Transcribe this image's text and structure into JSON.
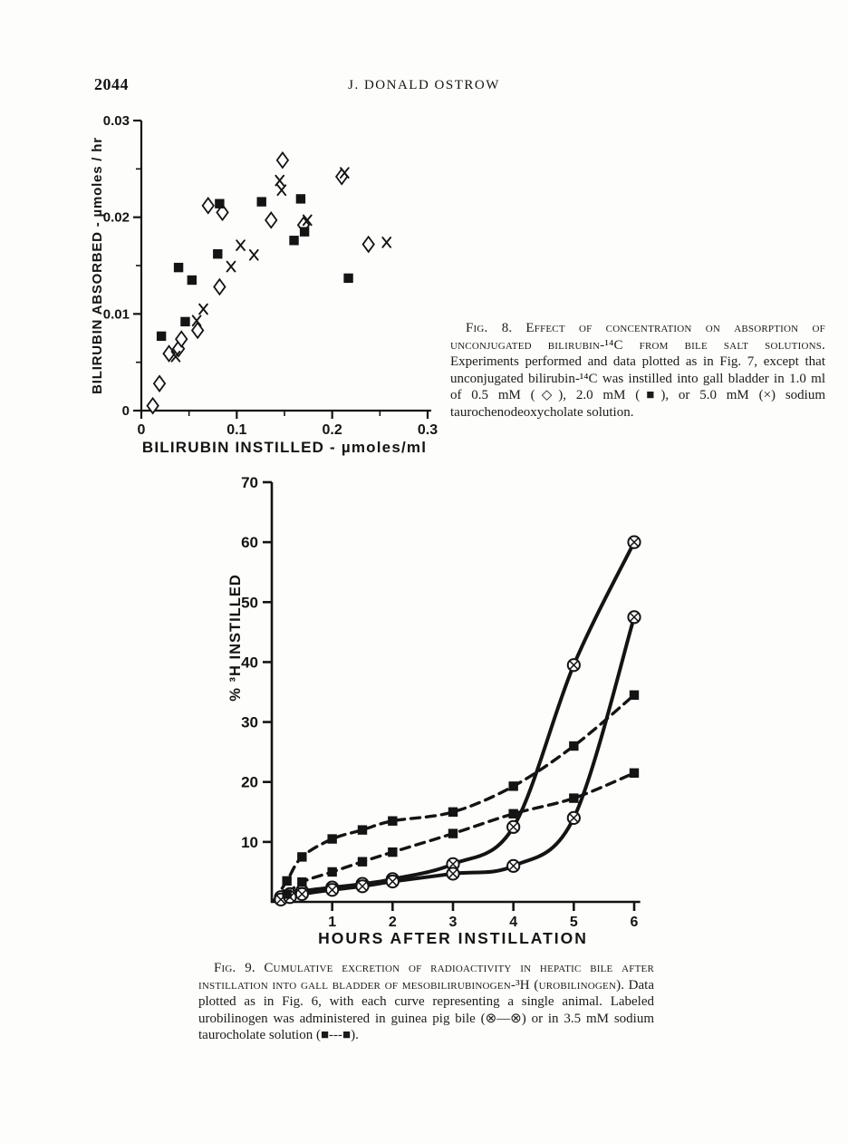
{
  "page": {
    "number": "2044",
    "running_head": "J. DONALD OSTROW"
  },
  "figure8": {
    "caption": {
      "label": "Fig. 8.",
      "title": "Effect of concentration on absorption of unconjugated bilirubin-¹⁴C from bile salt solutions.",
      "body": "Experiments performed and data plotted as in Fig. 7, except that unconjugated bilirubin-¹⁴C was instilled into gall bladder in 1.0 ml of 0.5 mM (◇), 2.0 mM (■), or 5.0 mM (×) sodium taurochenodeoxycholate solution."
    }
  },
  "figure9": {
    "caption": {
      "label": "Fig. 9.",
      "title": "Cumulative excretion of radioactivity in hepatic bile after instillation into gall bladder of mesobilirubinogen-³H (urobilinogen).",
      "body": "Data plotted as in Fig. 6, with each curve representing a single animal. Labeled urobilinogen was administered in guinea pig bile (⊗—⊗) or in 3.5 mM sodium taurocholate solution (■---■)."
    }
  },
  "chart_data": [
    {
      "id": "fig8",
      "type": "scatter",
      "title": "",
      "xlabel": "BILIRUBIN INSTILLED - µmoles/ml",
      "ylabel": "BILIRUBIN ABSORBED - µmoles / hr",
      "xlim": [
        0,
        0.3
      ],
      "ylim": [
        0,
        0.03
      ],
      "xticks": [
        0,
        0.1,
        0.2,
        0.3
      ],
      "xtick_labels": [
        "0",
        "0.1",
        "0.2",
        "0.3"
      ],
      "xminor": [
        0.05,
        0.15,
        0.25
      ],
      "yticks": [
        0,
        0.01,
        0.02,
        0.03
      ],
      "ytick_labels": [
        "0",
        "0.01",
        "0.02",
        "0.03"
      ],
      "yminor": [
        0.005,
        0.015,
        0.025
      ],
      "grid": false,
      "legend": "in caption",
      "series": [
        {
          "name": "0.5 mM sodium taurochenodeoxycholate",
          "marker": "diamond",
          "points": [
            [
              0.012,
              0.0005
            ],
            [
              0.019,
              0.0028
            ],
            [
              0.029,
              0.0059
            ],
            [
              0.039,
              0.0064
            ],
            [
              0.042,
              0.0074
            ],
            [
              0.059,
              0.0083
            ],
            [
              0.07,
              0.0212
            ],
            [
              0.082,
              0.0128
            ],
            [
              0.085,
              0.0205
            ],
            [
              0.136,
              0.0197
            ],
            [
              0.148,
              0.0259
            ],
            [
              0.17,
              0.0192
            ],
            [
              0.21,
              0.0242
            ],
            [
              0.238,
              0.0172
            ]
          ]
        },
        {
          "name": "2.0 mM sodium taurochenodeoxycholate",
          "marker": "square",
          "points": [
            [
              0.021,
              0.0077
            ],
            [
              0.039,
              0.0148
            ],
            [
              0.046,
              0.0092
            ],
            [
              0.053,
              0.0135
            ],
            [
              0.08,
              0.0162
            ],
            [
              0.082,
              0.0214
            ],
            [
              0.126,
              0.0216
            ],
            [
              0.16,
              0.0176
            ],
            [
              0.167,
              0.0219
            ],
            [
              0.171,
              0.0185
            ],
            [
              0.217,
              0.0137
            ]
          ]
        },
        {
          "name": "5.0 mM sodium taurochenodeoxycholate",
          "marker": "x",
          "points": [
            [
              0.036,
              0.0056
            ],
            [
              0.058,
              0.0093
            ],
            [
              0.065,
              0.0105
            ],
            [
              0.094,
              0.0149
            ],
            [
              0.104,
              0.0171
            ],
            [
              0.118,
              0.0161
            ],
            [
              0.145,
              0.0238
            ],
            [
              0.147,
              0.0228
            ],
            [
              0.174,
              0.0197
            ],
            [
              0.213,
              0.0246
            ],
            [
              0.257,
              0.0174
            ]
          ]
        }
      ]
    },
    {
      "id": "fig9",
      "type": "line",
      "title": "",
      "xlabel": "HOURS AFTER INSTILLATION",
      "ylabel": "% ³H INSTILLED",
      "xlim": [
        0,
        6.1
      ],
      "ylim": [
        0,
        70
      ],
      "xticks": [
        1,
        2,
        3,
        4,
        5,
        6
      ],
      "xtick_labels": [
        "1",
        "2",
        "3",
        "4",
        "5",
        "6"
      ],
      "yticks": [
        10,
        20,
        30,
        40,
        50,
        60,
        70
      ],
      "ytick_labels": [
        "10",
        "20",
        "30",
        "40",
        "50",
        "60",
        "70"
      ],
      "grid": false,
      "legend": "in caption",
      "series": [
        {
          "name": "guinea pig bile, animal 1",
          "marker": "otimes",
          "line": "solid",
          "x": [
            0.15,
            0.3,
            0.5,
            1,
            1.5,
            2,
            3,
            4,
            5,
            6
          ],
          "y": [
            0.8,
            1.3,
            1.8,
            2.4,
            3.0,
            3.8,
            6.3,
            12.5,
            39.5,
            60
          ]
        },
        {
          "name": "guinea pig bile, animal 2",
          "marker": "otimes",
          "line": "solid",
          "x": [
            0.15,
            0.3,
            0.5,
            1,
            1.5,
            2,
            3,
            4,
            5,
            6
          ],
          "y": [
            0.4,
            0.8,
            1.3,
            2.0,
            2.6,
            3.4,
            4.7,
            6.0,
            14.0,
            47.5
          ]
        },
        {
          "name": "3.5 mM sodium taurocholate, animal 1",
          "marker": "square",
          "line": "dashed",
          "x": [
            0.25,
            0.5,
            1,
            1.5,
            2,
            3,
            4,
            5,
            6
          ],
          "y": [
            3.5,
            7.5,
            10.5,
            12.0,
            13.5,
            15.0,
            19.3,
            26.0,
            34.5
          ]
        },
        {
          "name": "3.5 mM sodium taurocholate, animal 2",
          "marker": "square",
          "line": "dashed",
          "x": [
            0.25,
            0.5,
            1,
            1.5,
            2,
            3,
            4,
            5,
            6
          ],
          "y": [
            1.3,
            3.3,
            5.0,
            6.7,
            8.3,
            11.4,
            14.7,
            17.3,
            21.5
          ]
        }
      ]
    }
  ]
}
